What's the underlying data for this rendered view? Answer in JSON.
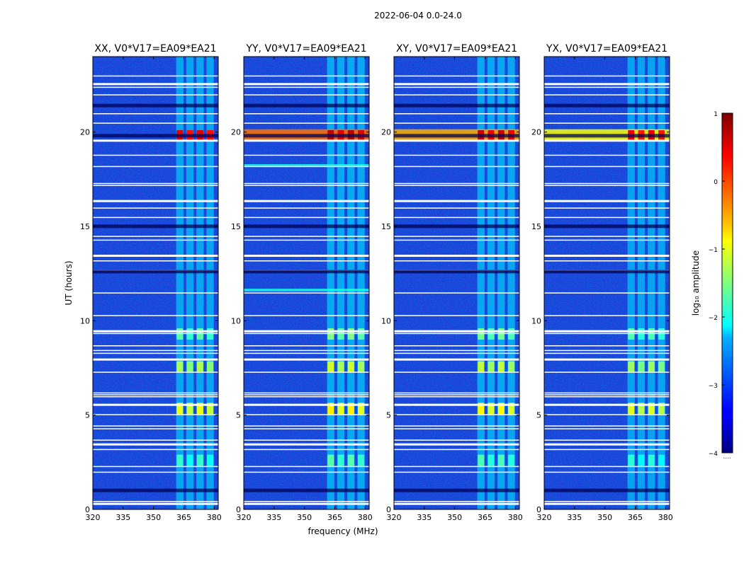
{
  "figure_title": "2022-06-04 0.0-24.0",
  "chart_data": {
    "type": "heatmap",
    "suptitle": "2022-06-04 0.0-24.0",
    "xlabel": "frequency (MHz)",
    "ylabel": "UT (hours)",
    "xlim": [
      320,
      382
    ],
    "ylim": [
      0,
      24
    ],
    "xticks": [
      320,
      335,
      350,
      365,
      380
    ],
    "yticks": [
      0,
      5,
      10,
      15,
      20
    ],
    "panels": [
      {
        "title": "XX, V0*V17=EA09*EA21",
        "pol": "XX",
        "strength": 0.85,
        "band_20": 0.15
      },
      {
        "title": "YY, V0*V17=EA09*EA21",
        "pol": "YY",
        "strength": 1.0,
        "band_20": 0.85
      },
      {
        "title": "XY, V0*V17=EA09*EA21",
        "pol": "XY",
        "strength": 0.95,
        "band_20": 0.6
      },
      {
        "title": "YX, V0*V17=EA09*EA21",
        "pol": "YX",
        "strength": 0.8,
        "band_20": 0.25
      }
    ],
    "emission_channels_mhz": [
      363,
      368,
      373,
      378
    ],
    "rfi_events_ut": [
      {
        "ut": 19.8,
        "level": 0.5
      },
      {
        "ut": 7.55,
        "level": -1.3
      },
      {
        "ut": 5.35,
        "level": -1.0
      },
      {
        "ut": 9.3,
        "level": -1.7
      },
      {
        "ut": 2.6,
        "level": -1.9
      }
    ],
    "flagged_ut": [
      0.35,
      0.45,
      2.0,
      2.3,
      3.2,
      3.5,
      3.7,
      4.3,
      4.45,
      5.05,
      5.6,
      6.0,
      6.1,
      6.2,
      7.3,
      8.0,
      8.3,
      8.45,
      8.7,
      9.35,
      9.5,
      10.3,
      11.5,
      12.7,
      13.2,
      13.5,
      14.3,
      14.5,
      15.5,
      16.0,
      16.4,
      17.2,
      17.3,
      18.2,
      18.8,
      19.6,
      20.5,
      21.0,
      22.0,
      22.4,
      22.6,
      23.0
    ],
    "colorbar": {
      "label": "log₁₀ amplitude",
      "range": [
        -4,
        1
      ],
      "ticks": [
        "1",
        "0",
        "−1",
        "−2",
        "−3",
        "−4"
      ],
      "extra_label": "....."
    }
  }
}
